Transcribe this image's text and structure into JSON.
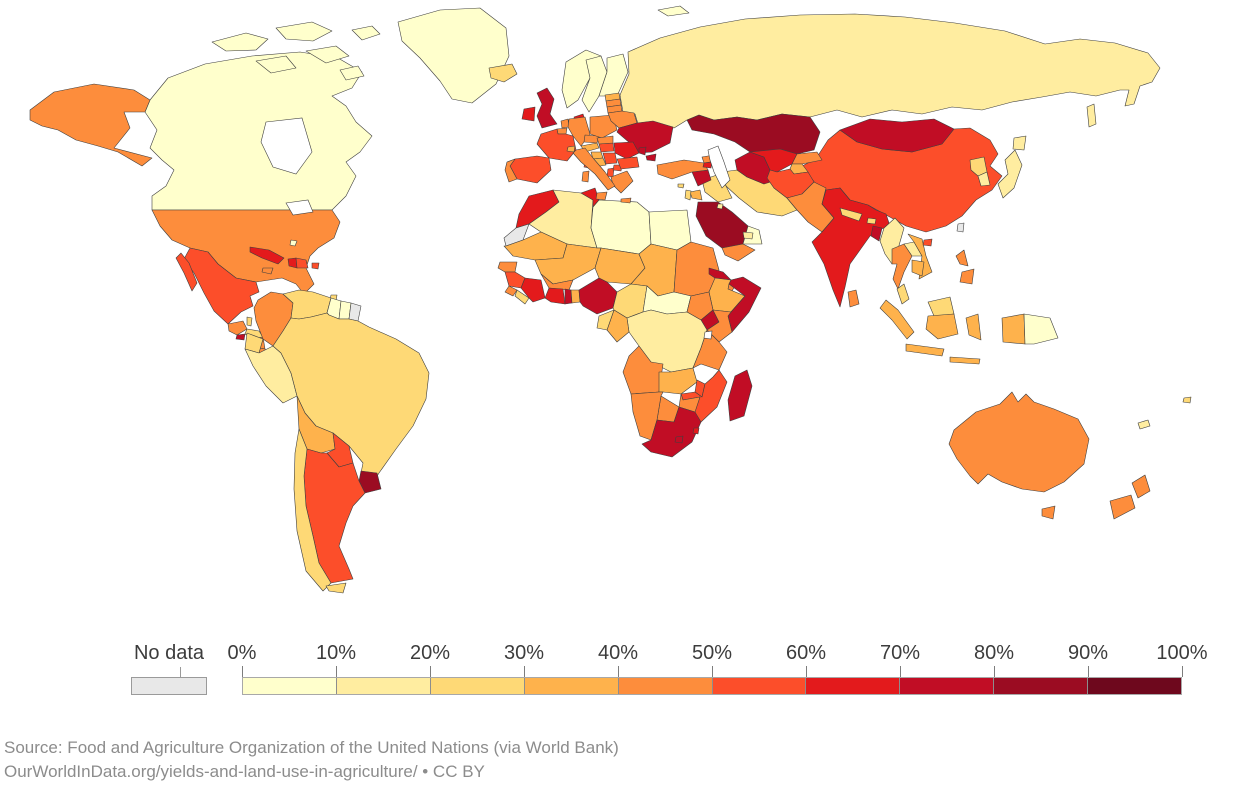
{
  "legend": {
    "no_data_label": "No data",
    "no_data_color": "#e8e8e8",
    "tick_labels": [
      "0%",
      "10%",
      "20%",
      "30%",
      "40%",
      "50%",
      "60%",
      "70%",
      "80%",
      "90%",
      "100%"
    ],
    "bucket_labels": [
      "0-10%",
      "10-20%",
      "20-30%",
      "30-40%",
      "40-50%",
      "50-60%",
      "60-70%",
      "70-80%",
      "80-90%",
      "90-100%"
    ],
    "bucket_colors": [
      "#FFFFCC",
      "#FFEDA0",
      "#FED976",
      "#FEB24C",
      "#FD8D3C",
      "#FC4E2A",
      "#E31A1C",
      "#C10D25",
      "#9B0C22",
      "#6E081D"
    ]
  },
  "footer": {
    "source_line": "Source: Food and Agriculture Organization of the United Nations (via World Bank)",
    "link_line": "OurWorldInData.org/yields-and-land-use-in-agriculture/ • CC BY"
  },
  "map": {
    "stroke_color": "#3f3f3f",
    "ocean_color": "#ffffff",
    "countries": [
      {
        "id": "russia",
        "name": "Russia",
        "bucket": 1,
        "value": "10-20%"
      },
      {
        "id": "canada",
        "name": "Canada",
        "bucket": 0,
        "value": "0-10%"
      },
      {
        "id": "united_states",
        "name": "United States",
        "bucket": 4,
        "value": "40-50%"
      },
      {
        "id": "greenland",
        "name": "Greenland",
        "bucket": 0,
        "value": "0-10%"
      },
      {
        "id": "iceland",
        "name": "Iceland",
        "bucket": 2,
        "value": "20-30%"
      },
      {
        "id": "mexico",
        "name": "Mexico",
        "bucket": 5,
        "value": "50-60%"
      },
      {
        "id": "guatemala",
        "name": "Guatemala",
        "bucket": 4,
        "value": "40-50%"
      },
      {
        "id": "belize",
        "name": "Belize",
        "bucket": 2,
        "value": "20-30%"
      },
      {
        "id": "el_salvador",
        "name": "El Salvador",
        "bucket": 7,
        "value": "70-80%"
      },
      {
        "id": "honduras",
        "name": "Honduras",
        "bucket": 2,
        "value": "20-30%"
      },
      {
        "id": "nicaragua",
        "name": "Nicaragua",
        "bucket": 4,
        "value": "40-50%"
      },
      {
        "id": "costa_rica",
        "name": "Costa Rica",
        "bucket": 4,
        "value": "40-50%"
      },
      {
        "id": "panama",
        "name": "Panama",
        "bucket": 3,
        "value": "30-40%"
      },
      {
        "id": "cuba",
        "name": "Cuba",
        "bucket": 6,
        "value": "60-70%"
      },
      {
        "id": "jamaica",
        "name": "Jamaica",
        "bucket": 4,
        "value": "40-50%"
      },
      {
        "id": "haiti",
        "name": "Haiti",
        "bucket": 6,
        "value": "60-70%"
      },
      {
        "id": "dominican_republic",
        "name": "Dominican Republic",
        "bucket": 5,
        "value": "50-60%"
      },
      {
        "id": "puerto_rico",
        "name": "Puerto Rico",
        "bucket": 5,
        "value": "50-60%"
      },
      {
        "id": "bahamas",
        "name": "Bahamas",
        "bucket": 0,
        "value": "0-10%"
      },
      {
        "id": "trinidad_and_tobago",
        "name": "Trinidad and Tobago",
        "bucket": 2,
        "value": "20-30%"
      },
      {
        "id": "colombia",
        "name": "Colombia",
        "bucket": 4,
        "value": "40-50%"
      },
      {
        "id": "venezuela",
        "name": "Venezuela",
        "bucket": 2,
        "value": "20-30%"
      },
      {
        "id": "guyana",
        "name": "Guyana",
        "bucket": 0,
        "value": "0-10%"
      },
      {
        "id": "suriname",
        "name": "Suriname",
        "bucket": 0,
        "value": "0-10%"
      },
      {
        "id": "french_guiana",
        "name": "French Guiana",
        "bucket": -1,
        "value": "No data"
      },
      {
        "id": "ecuador",
        "name": "Ecuador",
        "bucket": 2,
        "value": "20-30%"
      },
      {
        "id": "peru",
        "name": "Peru",
        "bucket": 1,
        "value": "10-20%"
      },
      {
        "id": "brazil",
        "name": "Brazil",
        "bucket": 2,
        "value": "20-30%"
      },
      {
        "id": "bolivia",
        "name": "Bolivia",
        "bucket": 3,
        "value": "30-40%"
      },
      {
        "id": "paraguay",
        "name": "Paraguay",
        "bucket": 5,
        "value": "50-60%"
      },
      {
        "id": "uruguay",
        "name": "Uruguay",
        "bucket": 8,
        "value": "80-90%"
      },
      {
        "id": "argentina",
        "name": "Argentina",
        "bucket": 5,
        "value": "50-60%"
      },
      {
        "id": "chile",
        "name": "Chile",
        "bucket": 2,
        "value": "20-30%"
      },
      {
        "id": "morocco",
        "name": "Morocco",
        "bucket": 6,
        "value": "60-70%"
      },
      {
        "id": "western_sahara",
        "name": "Western Sahara",
        "bucket": -1,
        "value": "No data"
      },
      {
        "id": "algeria",
        "name": "Algeria",
        "bucket": 1,
        "value": "10-20%"
      },
      {
        "id": "tunisia",
        "name": "Tunisia",
        "bucket": 6,
        "value": "60-70%"
      },
      {
        "id": "libya",
        "name": "Libya",
        "bucket": 0,
        "value": "0-10%"
      },
      {
        "id": "egypt",
        "name": "Egypt",
        "bucket": 0,
        "value": "0-10%"
      },
      {
        "id": "mauritania",
        "name": "Mauritania",
        "bucket": 3,
        "value": "30-40%"
      },
      {
        "id": "mali",
        "name": "Mali",
        "bucket": 3,
        "value": "30-40%"
      },
      {
        "id": "niger",
        "name": "Niger",
        "bucket": 3,
        "value": "30-40%"
      },
      {
        "id": "chad",
        "name": "Chad",
        "bucket": 3,
        "value": "30-40%"
      },
      {
        "id": "sudan",
        "name": "Sudan",
        "bucket": 4,
        "value": "40-50%"
      },
      {
        "id": "eritrea",
        "name": "Eritrea",
        "bucket": 7,
        "value": "70-80%"
      },
      {
        "id": "djibouti",
        "name": "Djibouti",
        "bucket": 4,
        "value": "40-50%"
      },
      {
        "id": "ethiopia",
        "name": "Ethiopia",
        "bucket": 3,
        "value": "30-40%"
      },
      {
        "id": "somalia",
        "name": "Somalia",
        "bucket": 7,
        "value": "70-80%"
      },
      {
        "id": "senegal",
        "name": "Senegal",
        "bucket": 4,
        "value": "40-50%"
      },
      {
        "id": "guinea",
        "name": "Guinea",
        "bucket": 5,
        "value": "50-60%"
      },
      {
        "id": "sierra_leone",
        "name": "Sierra Leone",
        "bucket": 4,
        "value": "40-50%"
      },
      {
        "id": "liberia",
        "name": "Liberia",
        "bucket": 2,
        "value": "20-30%"
      },
      {
        "id": "cote_divoire",
        "name": "Cote d'Ivoire",
        "bucket": 6,
        "value": "60-70%"
      },
      {
        "id": "burkina_faso",
        "name": "Burkina Faso",
        "bucket": 4,
        "value": "40-50%"
      },
      {
        "id": "ghana",
        "name": "Ghana",
        "bucket": 6,
        "value": "60-70%"
      },
      {
        "id": "togo",
        "name": "Togo",
        "bucket": 7,
        "value": "70-80%"
      },
      {
        "id": "benin",
        "name": "Benin",
        "bucket": 3,
        "value": "30-40%"
      },
      {
        "id": "nigeria",
        "name": "Nigeria",
        "bucket": 7,
        "value": "70-80%"
      },
      {
        "id": "cameroon",
        "name": "Cameroon",
        "bucket": 2,
        "value": "20-30%"
      },
      {
        "id": "central_african_republic",
        "name": "Central African Republic",
        "bucket": 0,
        "value": "0-10%"
      },
      {
        "id": "south_sudan",
        "name": "South Sudan",
        "bucket": 4,
        "value": "40-50%"
      },
      {
        "id": "uganda",
        "name": "Uganda",
        "bucket": 7,
        "value": "70-80%"
      },
      {
        "id": "kenya",
        "name": "Kenya",
        "bucket": 4,
        "value": "40-50%"
      },
      {
        "id": "democratic_republic_of_congo",
        "name": "Democratic Republic of Congo",
        "bucket": 1,
        "value": "10-20%"
      },
      {
        "id": "congo",
        "name": "Congo",
        "bucket": 3,
        "value": "30-40%"
      },
      {
        "id": "gabon",
        "name": "Gabon",
        "bucket": 2,
        "value": "20-30%"
      },
      {
        "id": "tanzania",
        "name": "Tanzania",
        "bucket": 4,
        "value": "40-50%"
      },
      {
        "id": "angola",
        "name": "Angola",
        "bucket": 4,
        "value": "40-50%"
      },
      {
        "id": "zambia",
        "name": "Zambia",
        "bucket": 3,
        "value": "30-40%"
      },
      {
        "id": "malawi",
        "name": "Malawi",
        "bucket": 5,
        "value": "50-60%"
      },
      {
        "id": "mozambique",
        "name": "Mozambique",
        "bucket": 5,
        "value": "50-60%"
      },
      {
        "id": "zimbabwe",
        "name": "Zimbabwe",
        "bucket": 4,
        "value": "40-50%"
      },
      {
        "id": "botswana",
        "name": "Botswana",
        "bucket": 4,
        "value": "40-50%"
      },
      {
        "id": "namibia",
        "name": "Namibia",
        "bucket": 4,
        "value": "40-50%"
      },
      {
        "id": "south_africa",
        "name": "South Africa",
        "bucket": 7,
        "value": "70-80%"
      },
      {
        "id": "lesotho",
        "name": "Lesotho",
        "bucket": 7,
        "value": "70-80%"
      },
      {
        "id": "eswatini",
        "name": "Eswatini",
        "bucket": 6,
        "value": "60-70%"
      },
      {
        "id": "madagascar",
        "name": "Madagascar",
        "bucket": 7,
        "value": "70-80%"
      },
      {
        "id": "norway",
        "name": "Norway",
        "bucket": 0,
        "value": "0-10%"
      },
      {
        "id": "sweden",
        "name": "Sweden",
        "bucket": 0,
        "value": "0-10%"
      },
      {
        "id": "finland",
        "name": "Finland",
        "bucket": 0,
        "value": "0-10%"
      },
      {
        "id": "denmark",
        "name": "Denmark",
        "bucket": 6,
        "value": "60-70%"
      },
      {
        "id": "united_kingdom",
        "name": "United Kingdom",
        "bucket": 7,
        "value": "70-80%"
      },
      {
        "id": "ireland",
        "name": "Ireland",
        "bucket": 6,
        "value": "60-70%"
      },
      {
        "id": "netherlands",
        "name": "Netherlands",
        "bucket": 4,
        "value": "40-50%"
      },
      {
        "id": "belgium",
        "name": "Belgium",
        "bucket": 4,
        "value": "40-50%"
      },
      {
        "id": "france",
        "name": "France",
        "bucket": 5,
        "value": "50-60%"
      },
      {
        "id": "spain",
        "name": "Spain",
        "bucket": 5,
        "value": "50-60%"
      },
      {
        "id": "portugal",
        "name": "Portugal",
        "bucket": 4,
        "value": "40-50%"
      },
      {
        "id": "germany",
        "name": "Germany",
        "bucket": 4,
        "value": "40-50%"
      },
      {
        "id": "switzerland",
        "name": "Switzerland",
        "bucket": 3,
        "value": "30-40%"
      },
      {
        "id": "czechia",
        "name": "Czechia",
        "bucket": 4,
        "value": "40-50%"
      },
      {
        "id": "austria",
        "name": "Austria",
        "bucket": 3,
        "value": "30-40%"
      },
      {
        "id": "poland",
        "name": "Poland",
        "bucket": 4,
        "value": "40-50%"
      },
      {
        "id": "estonia",
        "name": "Estonia",
        "bucket": 3,
        "value": "30-40%"
      },
      {
        "id": "latvia",
        "name": "Latvia",
        "bucket": 4,
        "value": "40-50%"
      },
      {
        "id": "lithuania",
        "name": "Lithuania",
        "bucket": 4,
        "value": "40-50%"
      },
      {
        "id": "belarus",
        "name": "Belarus",
        "bucket": 4,
        "value": "40-50%"
      },
      {
        "id": "ukraine",
        "name": "Ukraine",
        "bucket": 7,
        "value": "70-80%"
      },
      {
        "id": "moldova",
        "name": "Moldova",
        "bucket": 7,
        "value": "70-80%"
      },
      {
        "id": "romania",
        "name": "Romania",
        "bucket": 6,
        "value": "60-70%"
      },
      {
        "id": "hungary",
        "name": "Hungary",
        "bucket": 5,
        "value": "50-60%"
      },
      {
        "id": "slovakia",
        "name": "Slovakia",
        "bucket": 4,
        "value": "40-50%"
      },
      {
        "id": "serbia",
        "name": "Serbia",
        "bucket": 5,
        "value": "50-60%"
      },
      {
        "id": "croatia",
        "name": "Croatia",
        "bucket": 3,
        "value": "30-40%"
      },
      {
        "id": "bosnia_and_herzegovina",
        "name": "Bosnia and Herzegovina",
        "bucket": 3,
        "value": "30-40%"
      },
      {
        "id": "albania",
        "name": "Albania",
        "bucket": 5,
        "value": "50-60%"
      },
      {
        "id": "north_macedonia",
        "name": "North Macedonia",
        "bucket": 5,
        "value": "50-60%"
      },
      {
        "id": "bulgaria",
        "name": "Bulgaria",
        "bucket": 5,
        "value": "50-60%"
      },
      {
        "id": "greece",
        "name": "Greece",
        "bucket": 4,
        "value": "40-50%"
      },
      {
        "id": "italy",
        "name": "Italy",
        "bucket": 4,
        "value": "40-50%"
      },
      {
        "id": "kazakhstan",
        "name": "Kazakhstan",
        "bucket": 8,
        "value": "80-90%"
      },
      {
        "id": "china",
        "name": "China",
        "bucket": 5,
        "value": "50-60%"
      },
      {
        "id": "mongolia",
        "name": "Mongolia",
        "bucket": 7,
        "value": "70-80%"
      },
      {
        "id": "iran",
        "name": "Iran",
        "bucket": 2,
        "value": "20-30%"
      },
      {
        "id": "saudi_arabia",
        "name": "Saudi Arabia",
        "bucket": 8,
        "value": "80-90%"
      },
      {
        "id": "turkmenistan",
        "name": "Turkmenistan",
        "bucket": 7,
        "value": "70-80%"
      },
      {
        "id": "uzbekistan",
        "name": "Uzbekistan",
        "bucket": 6,
        "value": "60-70%"
      },
      {
        "id": "kyrgyzstan",
        "name": "Kyrgyzstan",
        "bucket": 4,
        "value": "40-50%"
      },
      {
        "id": "tajikistan",
        "name": "Tajikistan",
        "bucket": 3,
        "value": "30-40%"
      },
      {
        "id": "afghanistan",
        "name": "Afghanistan",
        "bucket": 5,
        "value": "50-60%"
      },
      {
        "id": "pakistan",
        "name": "Pakistan",
        "bucket": 4,
        "value": "40-50%"
      },
      {
        "id": "iraq",
        "name": "Iraq",
        "bucket": 2,
        "value": "20-30%"
      },
      {
        "id": "syria",
        "name": "Syria",
        "bucket": 7,
        "value": "70-80%"
      },
      {
        "id": "jordan",
        "name": "Jordan",
        "bucket": 3,
        "value": "30-40%"
      },
      {
        "id": "israel",
        "name": "Israel",
        "bucket": 2,
        "value": "20-30%"
      },
      {
        "id": "yemen",
        "name": "Yemen",
        "bucket": 4,
        "value": "40-50%"
      },
      {
        "id": "oman",
        "name": "Oman",
        "bucket": 0,
        "value": "0-10%"
      },
      {
        "id": "united_arab_emirates",
        "name": "United Arab Emirates",
        "bucket": 1,
        "value": "10-20%"
      },
      {
        "id": "kuwait",
        "name": "Kuwait",
        "bucket": 1,
        "value": "10-20%"
      },
      {
        "id": "turkey",
        "name": "Turkey",
        "bucket": 4,
        "value": "40-50%"
      },
      {
        "id": "cyprus",
        "name": "Cyprus",
        "bucket": 2,
        "value": "20-30%"
      },
      {
        "id": "georgia",
        "name": "Georgia",
        "bucket": 4,
        "value": "40-50%"
      },
      {
        "id": "armenia",
        "name": "Armenia",
        "bucket": 6,
        "value": "60-70%"
      },
      {
        "id": "azerbaijan",
        "name": "Azerbaijan",
        "bucket": 5,
        "value": "50-60%"
      },
      {
        "id": "india",
        "name": "India",
        "bucket": 6,
        "value": "60-70%"
      },
      {
        "id": "nepal",
        "name": "Nepal",
        "bucket": 2,
        "value": "20-30%"
      },
      {
        "id": "bhutan",
        "name": "Bhutan",
        "bucket": 2,
        "value": "20-30%"
      },
      {
        "id": "bangladesh",
        "name": "Bangladesh",
        "bucket": 7,
        "value": "70-80%"
      },
      {
        "id": "myanmar",
        "name": "Myanmar",
        "bucket": 1,
        "value": "10-20%"
      },
      {
        "id": "thailand",
        "name": "Thailand",
        "bucket": 4,
        "value": "40-50%"
      },
      {
        "id": "laos",
        "name": "Laos",
        "bucket": 1,
        "value": "10-20%"
      },
      {
        "id": "vietnam",
        "name": "Vietnam",
        "bucket": 3,
        "value": "30-40%"
      },
      {
        "id": "cambodia",
        "name": "Cambodia",
        "bucket": 3,
        "value": "30-40%"
      },
      {
        "id": "malaysia",
        "name": "Malaysia",
        "bucket": 2,
        "value": "20-30%"
      },
      {
        "id": "indonesia",
        "name": "Indonesia",
        "bucket": 3,
        "value": "30-40%"
      },
      {
        "id": "papua_new_guinea",
        "name": "Papua New Guinea",
        "bucket": 0,
        "value": "0-10%"
      },
      {
        "id": "philippines",
        "name": "Philippines",
        "bucket": 4,
        "value": "40-50%"
      },
      {
        "id": "sri_lanka",
        "name": "Sri Lanka",
        "bucket": 4,
        "value": "40-50%"
      },
      {
        "id": "taiwan",
        "name": "Taiwan",
        "bucket": -1,
        "value": "No data"
      },
      {
        "id": "north_korea",
        "name": "North Korea",
        "bucket": 2,
        "value": "20-30%"
      },
      {
        "id": "south_korea",
        "name": "South Korea",
        "bucket": 1,
        "value": "10-20%"
      },
      {
        "id": "japan",
        "name": "Japan",
        "bucket": 1,
        "value": "10-20%"
      },
      {
        "id": "hainan",
        "name": "Hainan (China)",
        "bucket": 5,
        "value": "50-60%"
      },
      {
        "id": "australia",
        "name": "Australia",
        "bucket": 4,
        "value": "40-50%"
      },
      {
        "id": "tasmania",
        "name": "Tasmania (Australia)",
        "bucket": 4,
        "value": "40-50%"
      },
      {
        "id": "new_zealand",
        "name": "New Zealand",
        "bucket": 4,
        "value": "40-50%"
      },
      {
        "id": "fiji",
        "name": "Fiji",
        "bucket": 2,
        "value": "20-30%"
      },
      {
        "id": "new_caledonia",
        "name": "New Caledonia",
        "bucket": 1,
        "value": "10-20%"
      }
    ]
  }
}
